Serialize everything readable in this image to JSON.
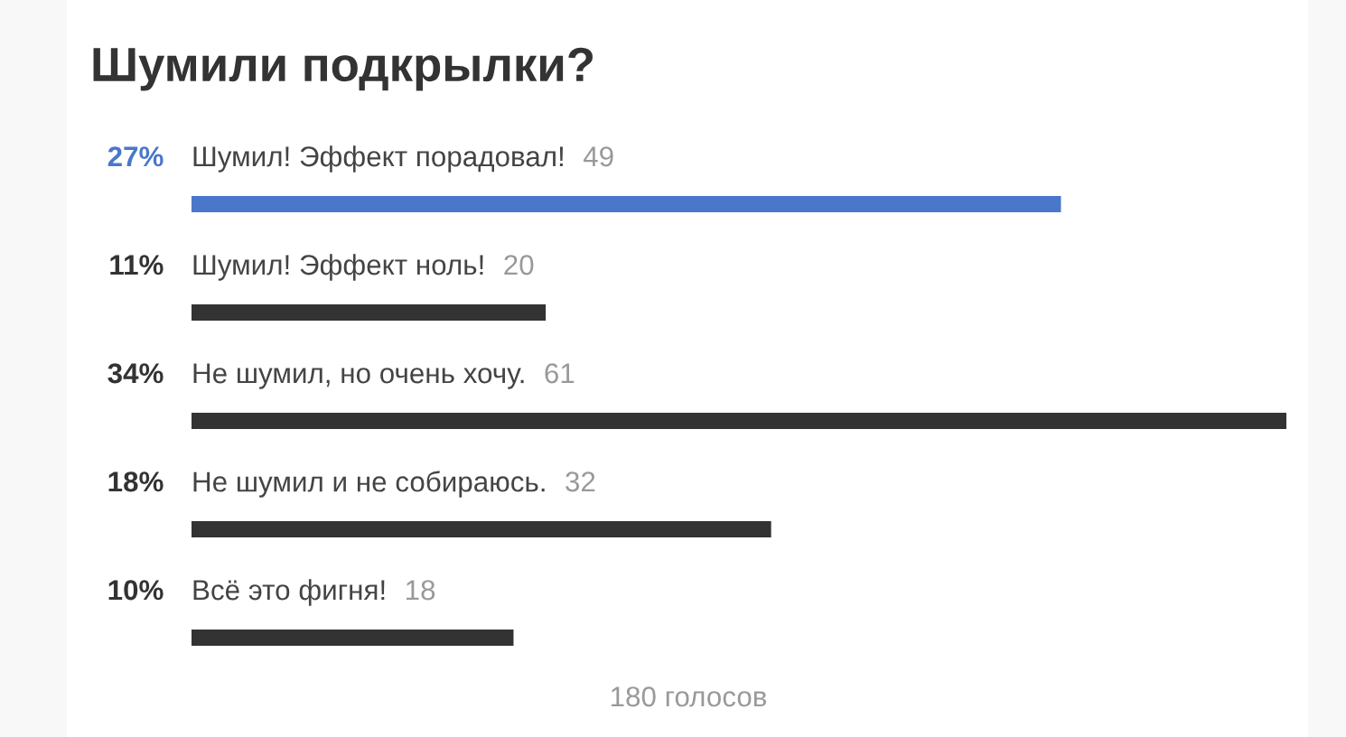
{
  "chart_data": {
    "type": "bar",
    "orientation": "horizontal",
    "title": "Шумили подкрылки?",
    "categories": [
      "Шумил! Эффект порадовал!",
      "Шумил! Эффект ноль!",
      "Не шумил, но очень хочу.",
      "Не шумил и не собираюсь.",
      "Всё это фигня!"
    ],
    "values": [
      27,
      11,
      34,
      18,
      10
    ],
    "value_labels": [
      "27%",
      "11%",
      "34%",
      "18%",
      "10%"
    ],
    "colors": [
      "#4a77c9",
      "#333333",
      "#333333",
      "#333333",
      "#333333"
    ],
    "tick_labels": "y",
    "annotations": [
      {
        "text": "49",
        "y": "Шумил! Эффект порадовал!"
      },
      {
        "text": "20",
        "y": "Шумил! Эффект ноль!"
      },
      {
        "text": "61",
        "y": "Не шумил, но очень хочу."
      },
      {
        "text": "32",
        "y": "Не шумил и не собираюсь."
      },
      {
        "text": "18",
        "y": "Всё это фигня!"
      },
      "180 голосов"
    ]
  }
}
